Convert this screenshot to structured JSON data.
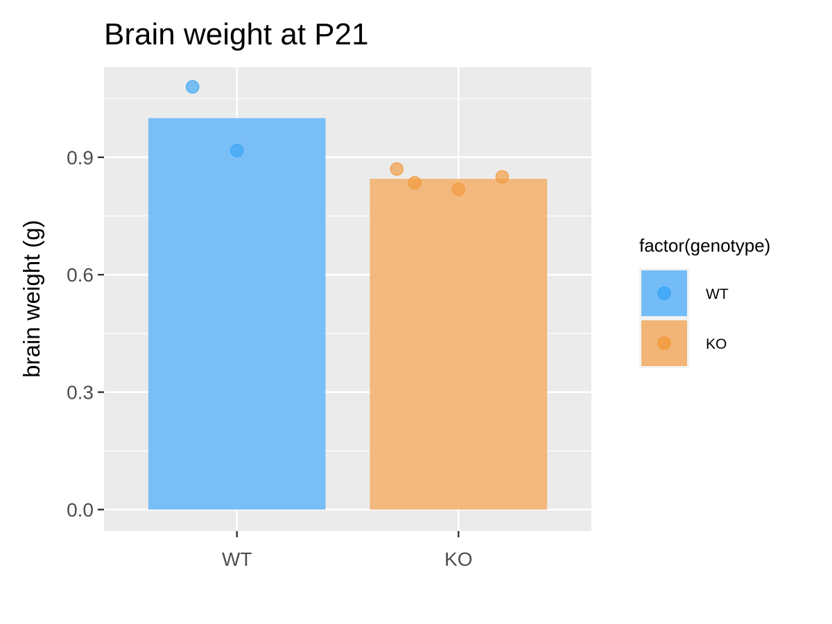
{
  "chart_data": {
    "type": "bar",
    "title": "Brain weight at P21",
    "xlabel": "",
    "ylabel": "brain weight (g)",
    "categories": [
      "WT",
      "KO"
    ],
    "values": [
      1.0,
      0.845
    ],
    "points": [
      {
        "category": "WT",
        "values": [
          1.08,
          0.917
        ]
      },
      {
        "category": "KO",
        "values": [
          0.87,
          0.835,
          0.818,
          0.85
        ]
      }
    ],
    "ylim": [
      -0.055,
      1.13
    ],
    "yticks": [
      0.0,
      0.3,
      0.6,
      0.9
    ],
    "ytick_labels": [
      "0.0",
      "0.3",
      "0.6",
      "0.9"
    ],
    "grid": true,
    "legend": {
      "title": "factor(genotype)",
      "position": "right",
      "entries": [
        "WT",
        "KO"
      ]
    },
    "colors": {
      "WT_bar": "#74bcf7",
      "WT_point": "#3aa6f8",
      "KO_bar": "#f2b577",
      "KO_point": "#f39a3c",
      "panel": "#ebebeb",
      "grid": "#ffffff"
    }
  }
}
